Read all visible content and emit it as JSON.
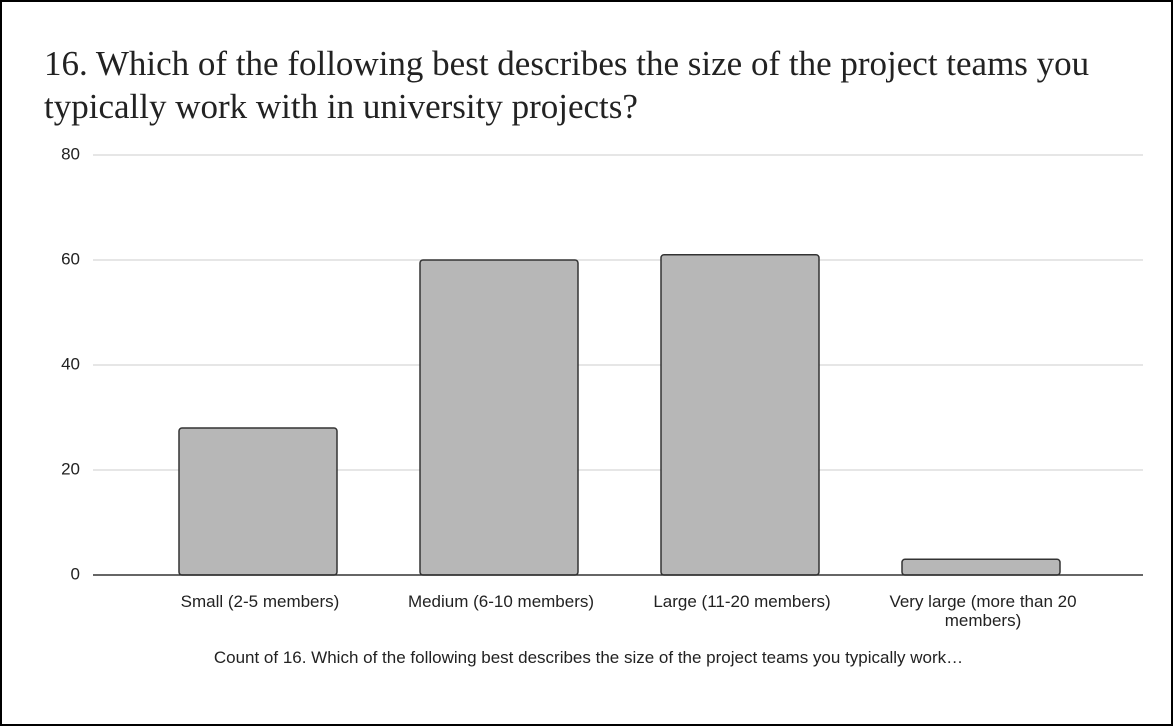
{
  "chart_data": {
    "type": "bar",
    "title": "16. Which of the following best describes the size of the project teams you typically work with in university projects?",
    "categories": [
      "Small (2-5 members)",
      "Medium (6-10 members)",
      "Large (11-20 members)",
      "Very large (more than 20 members)"
    ],
    "values": [
      28,
      60,
      61,
      3
    ],
    "color": "#b7b7b7",
    "ylim": [
      0,
      80
    ],
    "yticks": [
      0,
      20,
      40,
      60,
      80
    ],
    "grid": true,
    "x_label": "Count of 16. Which of the following best describes the size of the project teams you typically work…"
  }
}
